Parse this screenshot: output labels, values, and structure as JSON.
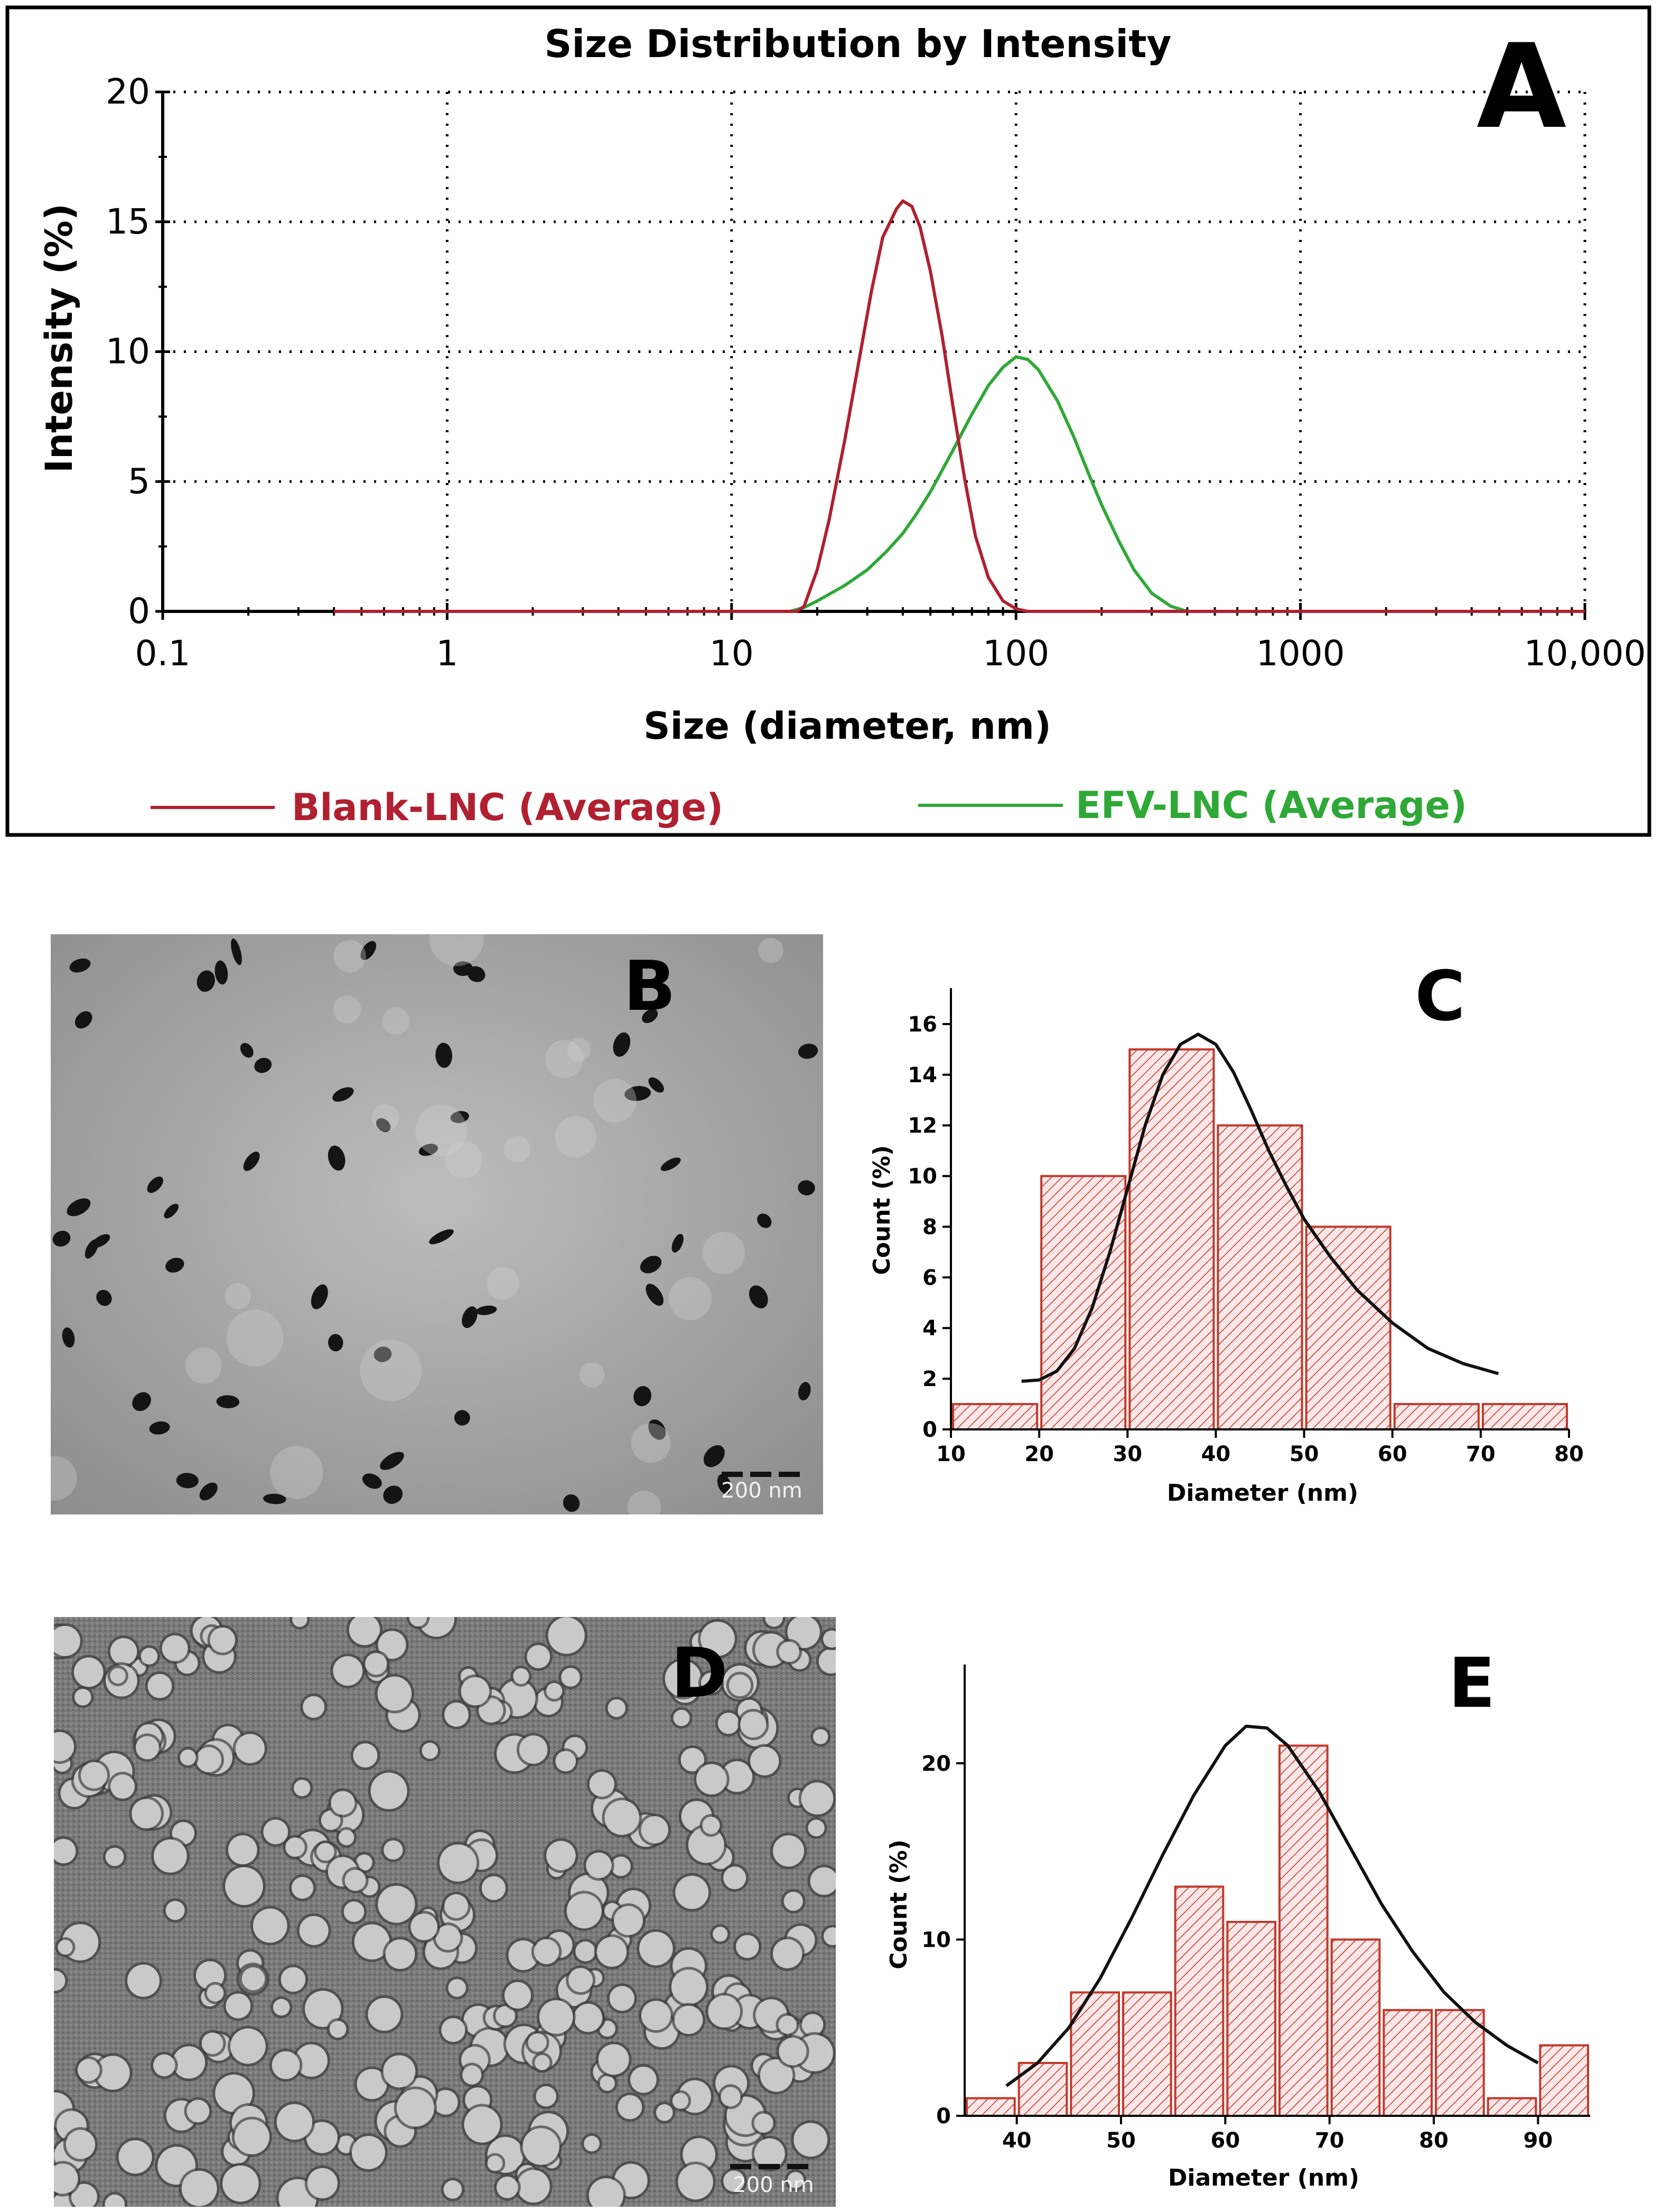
{
  "chart_data": [
    {
      "panel": "A",
      "type": "line",
      "title": "Size Distribution by Intensity",
      "xlabel": "Size (diameter, nm)",
      "ylabel": "Intensity (%)",
      "xscale": "log",
      "xlim": [
        0.1,
        10000
      ],
      "ylim": [
        0,
        20
      ],
      "xticks": [
        "0.1",
        "1",
        "10",
        "100",
        "1000",
        "10,000"
      ],
      "yticks": [
        "0",
        "5",
        "10",
        "15",
        "20"
      ],
      "grid": true,
      "legend_position": "bottom",
      "series": [
        {
          "name": "Blank-LNC (Average)",
          "color": "#b02030",
          "x": [
            0.4,
            17,
            18,
            20,
            22,
            25,
            28,
            31,
            34,
            38,
            40,
            43,
            46,
            50,
            55,
            60,
            66,
            72,
            80,
            90,
            100,
            110,
            10000
          ],
          "y": [
            0,
            0,
            0.2,
            1.6,
            3.5,
            6.6,
            9.6,
            12.3,
            14.4,
            15.5,
            15.8,
            15.6,
            14.8,
            13.1,
            10.6,
            7.9,
            5.1,
            2.9,
            1.3,
            0.4,
            0.1,
            0,
            0
          ]
        },
        {
          "name": "EFV-LNC (Average)",
          "color": "#2ea836",
          "x": [
            0.4,
            16,
            18,
            20,
            25,
            30,
            35,
            40,
            45,
            50,
            60,
            70,
            80,
            90,
            100,
            110,
            120,
            140,
            160,
            180,
            200,
            230,
            260,
            300,
            350,
            400,
            10000
          ],
          "y": [
            0,
            0,
            0.15,
            0.4,
            1.0,
            1.6,
            2.3,
            3.0,
            3.8,
            4.6,
            6.2,
            7.6,
            8.7,
            9.4,
            9.8,
            9.7,
            9.3,
            8.1,
            6.7,
            5.3,
            4.1,
            2.7,
            1.6,
            0.7,
            0.2,
            0,
            0
          ]
        }
      ]
    },
    {
      "panel": "C",
      "type": "bar",
      "xlabel": "Diameter (nm)",
      "ylabel": "Count (%)",
      "xlim": [
        10,
        80
      ],
      "ylim": [
        0,
        17
      ],
      "xticks": [
        "10",
        "20",
        "30",
        "40",
        "50",
        "60",
        "70",
        "80"
      ],
      "yticks": [
        "0",
        "2",
        "4",
        "6",
        "8",
        "10",
        "12",
        "14",
        "16"
      ],
      "bin_edges": [
        10,
        20,
        30,
        40,
        50,
        60,
        70,
        80
      ],
      "values": [
        1,
        10,
        15,
        12,
        8,
        1,
        1
      ],
      "fit_curve": {
        "x": [
          18,
          20,
          22,
          24,
          26,
          28,
          30,
          32,
          34,
          36,
          38,
          40,
          42,
          44,
          46,
          48,
          50,
          53,
          56,
          60,
          64,
          68,
          72
        ],
        "y": [
          1.9,
          1.95,
          2.3,
          3.2,
          4.8,
          7.0,
          9.5,
          12.0,
          14.0,
          15.2,
          15.6,
          15.2,
          14.1,
          12.6,
          11.0,
          9.6,
          8.3,
          6.8,
          5.5,
          4.2,
          3.2,
          2.6,
          2.2
        ]
      }
    },
    {
      "panel": "E",
      "type": "bar",
      "xlabel": "Diameter (nm)",
      "ylabel": "Count (%)",
      "xlim": [
        35,
        95
      ],
      "ylim": [
        0,
        25
      ],
      "xticks": [
        "40",
        "50",
        "60",
        "70",
        "80",
        "90"
      ],
      "yticks": [
        "0",
        "10",
        "20"
      ],
      "bin_edges": [
        35,
        40,
        45,
        50,
        55,
        60,
        65,
        70,
        75,
        80,
        85,
        90,
        95
      ],
      "values": [
        1,
        3,
        7,
        7,
        13,
        11,
        21,
        10,
        6,
        6,
        1,
        4
      ],
      "fit_curve": {
        "x": [
          39,
          42,
          45,
          48,
          51,
          54,
          57,
          60,
          62,
          64,
          66,
          69,
          72,
          75,
          78,
          81,
          84,
          87,
          90
        ],
        "y": [
          1.7,
          3.0,
          5.0,
          7.8,
          11.2,
          14.8,
          18.2,
          21.0,
          22.1,
          22.0,
          21.0,
          18.4,
          15.2,
          12.0,
          9.3,
          7.0,
          5.3,
          4.0,
          3.0
        ]
      }
    }
  ],
  "panels": {
    "a": {
      "letter": "A"
    },
    "b": {
      "letter": "B",
      "scalebar": "200 nm"
    },
    "c": {
      "letter": "C"
    },
    "d": {
      "letter": "D",
      "scalebar": "200 nm"
    },
    "e": {
      "letter": "E"
    }
  }
}
